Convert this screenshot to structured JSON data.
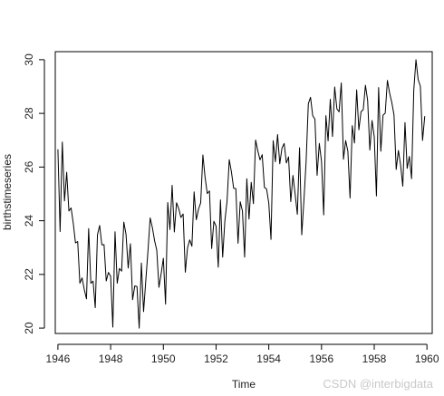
{
  "chart_data": {
    "type": "line",
    "title": "",
    "xlabel": "Time",
    "ylabel": "birthstimeseries",
    "xlim": [
      1945.9,
      1960.2
    ],
    "ylim": [
      19.8,
      30.3
    ],
    "x_ticks": [
      1946,
      1948,
      1950,
      1952,
      1954,
      1956,
      1958,
      1960
    ],
    "y_ticks": [
      20,
      22,
      24,
      26,
      28,
      30
    ],
    "start": 1946.0,
    "frequency": 12,
    "series": [
      {
        "values": [
          26.663,
          23.598,
          26.931,
          24.74,
          25.806,
          24.364,
          24.477,
          23.901,
          23.175,
          23.227,
          21.672,
          21.87,
          21.439,
          21.089,
          23.709,
          21.669,
          21.752,
          20.761,
          23.479,
          23.824,
          23.105,
          23.11,
          21.759,
          22.073,
          21.937,
          20.035,
          23.59,
          21.672,
          22.222,
          22.123,
          23.95,
          23.504,
          22.238,
          23.142,
          21.059,
          21.573,
          21.548,
          20.0,
          22.424,
          20.615,
          21.761,
          22.874,
          24.104,
          23.748,
          23.262,
          22.907,
          21.519,
          22.025,
          22.604,
          20.894,
          24.677,
          23.673,
          25.32,
          23.583,
          24.671,
          24.454,
          24.122,
          24.252,
          22.084,
          22.991,
          23.287,
          23.049,
          25.076,
          24.037,
          24.43,
          24.667,
          26.451,
          25.618,
          25.014,
          25.11,
          22.964,
          23.981,
          23.798,
          22.27,
          24.775,
          22.646,
          23.988,
          24.737,
          26.276,
          25.816,
          25.21,
          25.199,
          23.162,
          24.707,
          24.364,
          22.644,
          25.565,
          24.062,
          25.431,
          24.635,
          27.009,
          26.606,
          26.268,
          26.462,
          25.246,
          25.18,
          24.657,
          23.304,
          26.982,
          26.199,
          27.21,
          26.122,
          26.706,
          26.878,
          26.152,
          26.379,
          24.712,
          25.688,
          24.99,
          24.239,
          26.721,
          23.475,
          24.767,
          26.219,
          28.361,
          28.599,
          27.914,
          27.784,
          25.693,
          26.881,
          26.217,
          24.218,
          27.914,
          26.975,
          28.527,
          27.139,
          28.982,
          28.169,
          28.056,
          29.136,
          26.291,
          26.987,
          26.589,
          24.848,
          27.543,
          26.896,
          28.878,
          27.39,
          28.065,
          28.141,
          29.048,
          28.484,
          26.634,
          27.735,
          27.132,
          24.924,
          28.963,
          26.589,
          27.931,
          28.009,
          29.229,
          28.759,
          28.405,
          27.945,
          25.912,
          26.619,
          26.076,
          25.286,
          27.66,
          25.951,
          26.398,
          25.565,
          28.865,
          30.0,
          29.261,
          29.012,
          26.992,
          27.897
        ]
      }
    ]
  },
  "watermark": "CSDN @interbigdata"
}
